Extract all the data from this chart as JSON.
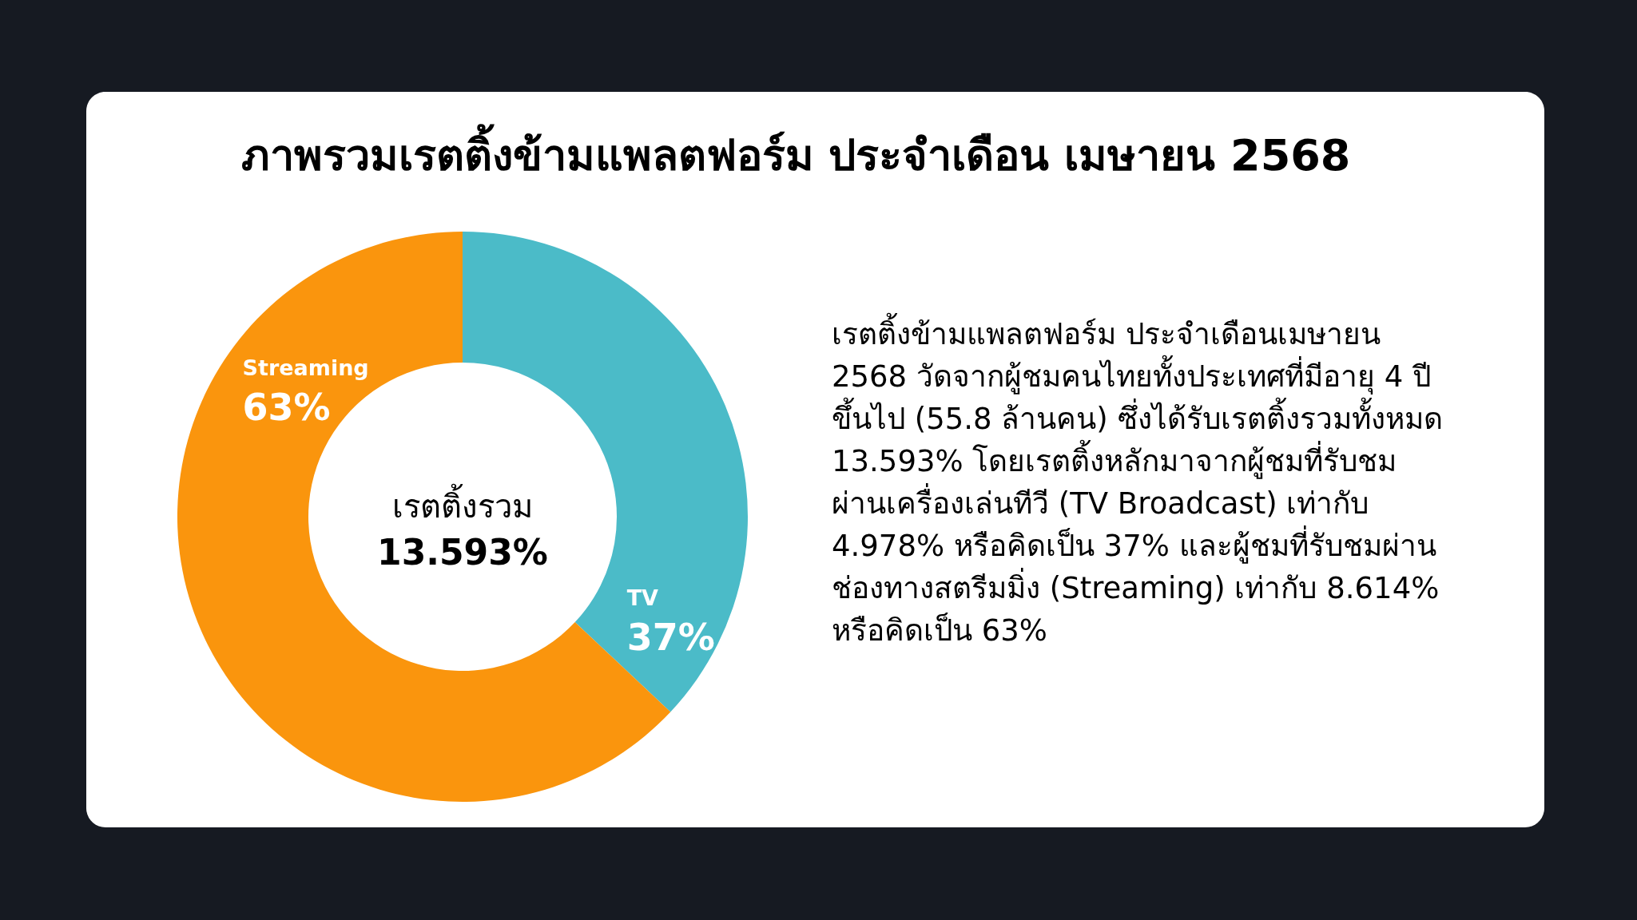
{
  "chart_data": {
    "type": "donut",
    "title": "ภาพรวมเรตติ้งข้ามแพลตฟอร์ม ประจำเดือน เมษายน 2568",
    "categories": [
      "TV",
      "Streaming"
    ],
    "values": [
      37,
      63
    ],
    "value_labels": [
      "37%",
      "63%"
    ],
    "colors": [
      "#4bbbc8",
      "#fa950d"
    ],
    "annotations": [
      "เรตติ้งรวม",
      "13.593%",
      "เรตติ้งข้ามแพลตฟอร์ม ประจำเดือนเมษายน\n2568 วัดจากผู้ชมคนไทยทั้งประเทศที่มีอายุ 4 ปี\nขึ้นไป (55.8 ล้านคน) ซึ่งได้รับเรตติ้งรวมทั้งหมด\n13.593% โดยเรตติ้งหลักมาจากผู้ชมที่รับชม\nผ่านเครื่องเล่นทีวี (TV Broadcast) เท่ากับ\n4.978% หรือคิดเป็น 37% และผู้ชมที่รับชมผ่าน\nช่องทางสตรีมมิ่ง (Streaming) เท่ากับ 8.614%\nหรือคิดเป็น 63%"
    ]
  }
}
